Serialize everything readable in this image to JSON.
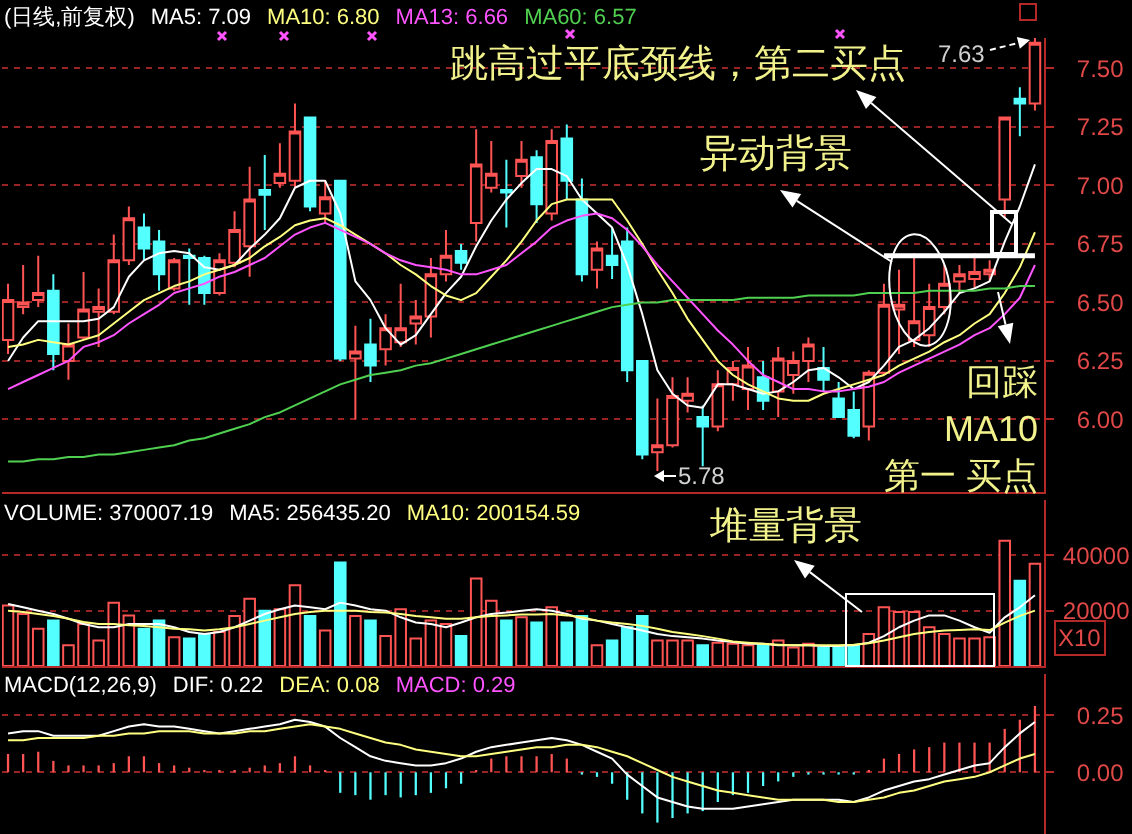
{
  "chart_data": [
    {
      "type": "candlestick",
      "title": "(日线,前复权)",
      "categories": [
        null,
        null,
        null,
        null,
        null,
        null,
        null,
        null,
        null,
        null,
        null,
        null,
        null,
        null,
        null,
        null,
        null,
        null,
        null,
        null,
        null,
        null,
        null,
        null,
        null,
        null,
        null,
        null,
        null,
        null,
        null,
        null,
        null,
        null,
        null,
        null,
        null,
        null,
        null,
        null,
        null,
        null,
        null,
        null,
        null,
        null,
        null,
        null,
        null,
        null,
        null,
        null,
        null,
        null,
        null,
        null,
        null,
        null,
        null,
        null,
        null,
        null,
        null,
        null,
        null,
        null,
        null,
        null,
        null
      ],
      "ohlc": [
        [
          6.34,
          6.58,
          6.28,
          6.51
        ],
        [
          6.48,
          6.66,
          6.45,
          6.5
        ],
        [
          6.51,
          6.7,
          6.48,
          6.54
        ],
        [
          6.55,
          6.62,
          6.21,
          6.28
        ],
        [
          6.25,
          6.41,
          6.17,
          6.32
        ],
        [
          6.35,
          6.63,
          6.34,
          6.47
        ],
        [
          6.46,
          6.56,
          6.31,
          6.48
        ],
        [
          6.46,
          6.79,
          6.45,
          6.68
        ],
        [
          6.68,
          6.91,
          6.66,
          6.86
        ],
        [
          6.82,
          6.88,
          6.68,
          6.73
        ],
        [
          6.76,
          6.81,
          6.55,
          6.62
        ],
        [
          6.56,
          6.69,
          6.55,
          6.68
        ],
        [
          6.7,
          6.73,
          6.49,
          6.69
        ],
        [
          6.69,
          6.7,
          6.49,
          6.54
        ],
        [
          6.54,
          6.71,
          6.53,
          6.68
        ],
        [
          6.67,
          6.89,
          6.65,
          6.81
        ],
        [
          6.74,
          7.08,
          6.61,
          6.94
        ],
        [
          6.98,
          7.13,
          6.81,
          6.96
        ],
        [
          7.01,
          7.18,
          6.99,
          7.05
        ],
        [
          7.02,
          7.35,
          6.99,
          7.23
        ],
        [
          7.29,
          7.29,
          6.89,
          6.91
        ],
        [
          6.88,
          7.02,
          6.84,
          6.95
        ],
        [
          7.02,
          7.02,
          6.25,
          6.26
        ],
        [
          6.26,
          6.4,
          6.0,
          6.29
        ],
        [
          6.32,
          6.43,
          6.16,
          6.23
        ],
        [
          6.3,
          6.45,
          6.23,
          6.39
        ],
        [
          6.33,
          6.58,
          6.31,
          6.39
        ],
        [
          6.41,
          6.51,
          6.32,
          6.44
        ],
        [
          6.44,
          6.69,
          6.35,
          6.62
        ],
        [
          6.62,
          6.81,
          6.59,
          6.7
        ],
        [
          6.72,
          6.75,
          6.64,
          6.67
        ],
        [
          6.84,
          7.24,
          6.76,
          7.09
        ],
        [
          6.99,
          7.19,
          6.97,
          7.05
        ],
        [
          6.98,
          7.11,
          6.82,
          6.97
        ],
        [
          7.04,
          7.19,
          6.99,
          7.11
        ],
        [
          7.12,
          7.15,
          6.84,
          6.92
        ],
        [
          6.88,
          7.24,
          6.85,
          7.19
        ],
        [
          7.2,
          7.26,
          6.94,
          7.02
        ],
        [
          6.94,
          7.03,
          6.59,
          6.62
        ],
        [
          6.64,
          6.76,
          6.56,
          6.73
        ],
        [
          6.7,
          6.82,
          6.6,
          6.66
        ],
        [
          6.76,
          6.82,
          6.16,
          6.21
        ],
        [
          6.25,
          6.25,
          5.83,
          5.85
        ],
        [
          5.86,
          6.09,
          5.78,
          5.89
        ],
        [
          5.89,
          6.18,
          5.88,
          6.1
        ],
        [
          6.08,
          6.18,
          6.03,
          6.11
        ],
        [
          6.01,
          6.06,
          5.8,
          5.97
        ],
        [
          5.97,
          6.21,
          5.95,
          6.15
        ],
        [
          6.15,
          6.25,
          6.08,
          6.22
        ],
        [
          6.13,
          6.31,
          6.04,
          6.23
        ],
        [
          6.18,
          6.25,
          6.04,
          6.08
        ],
        [
          6.12,
          6.31,
          6.01,
          6.26
        ],
        [
          6.19,
          6.29,
          6.11,
          6.25
        ],
        [
          6.25,
          6.35,
          6.16,
          6.32
        ],
        [
          6.22,
          6.31,
          6.12,
          6.17
        ],
        [
          6.09,
          6.16,
          6.01,
          6.01
        ],
        [
          6.04,
          6.12,
          5.92,
          5.93
        ],
        [
          5.97,
          6.21,
          5.91,
          6.2
        ],
        [
          6.2,
          6.58,
          6.19,
          6.49
        ],
        [
          6.47,
          6.64,
          6.28,
          6.49
        ],
        [
          6.34,
          6.71,
          6.31,
          6.42
        ],
        [
          6.36,
          6.58,
          6.31,
          6.48
        ],
        [
          6.48,
          6.66,
          6.45,
          6.58
        ],
        [
          6.59,
          6.66,
          6.54,
          6.62
        ],
        [
          6.6,
          6.71,
          6.56,
          6.63
        ],
        [
          6.62,
          6.68,
          6.59,
          6.64
        ],
        [
          6.94,
          7.29,
          6.86,
          7.29
        ],
        [
          7.37,
          7.42,
          7.21,
          7.35
        ],
        [
          7.35,
          7.63,
          7.32,
          7.61
        ]
      ],
      "colors": [
        "#ff5454",
        "#ff5454",
        "#ff5454",
        "#54ffff",
        "#ff5454",
        "#ff5454",
        "#ff5454",
        "#ff5454",
        "#ff5454",
        "#54ffff",
        "#54ffff",
        "#ff5454",
        "#54ffff",
        "#54ffff",
        "#ff5454",
        "#ff5454",
        "#ff5454",
        "#54ffff",
        "#ff5454",
        "#ff5454",
        "#54ffff",
        "#ff5454",
        "#54ffff",
        "#ff5454",
        "#54ffff",
        "#ff5454",
        "#ff5454",
        "#ff5454",
        "#ff5454",
        "#ff5454",
        "#54ffff",
        "#ff5454",
        "#ff5454",
        "#54ffff",
        "#ff5454",
        "#54ffff",
        "#ff5454",
        "#54ffff",
        "#54ffff",
        "#ff5454",
        "#54ffff",
        "#54ffff",
        "#54ffff",
        "#ff5454",
        "#ff5454",
        "#ff5454",
        "#54ffff",
        "#ff5454",
        "#ff5454",
        "#ff5454",
        "#54ffff",
        "#ff5454",
        "#ff5454",
        "#ff5454",
        "#54ffff",
        "#54ffff",
        "#54ffff",
        "#ff5454",
        "#ff5454",
        "#ff5454",
        "#ff5454",
        "#ff5454",
        "#ff5454",
        "#ff5454",
        "#ff5454",
        "#ff5454",
        "#ff5454",
        "#54ffff",
        "#ff5454"
      ],
      "series": [
        {
          "type": "line",
          "name": "MA5: 7.09",
          "color": "#ffffff",
          "values": [
            6.25,
            6.35,
            6.42,
            6.42,
            6.42,
            6.42,
            6.43,
            6.48,
            6.61,
            6.68,
            6.71,
            6.72,
            6.71,
            6.65,
            6.64,
            6.66,
            6.73,
            6.79,
            6.86,
            6.99,
            7.02,
            7.02,
            6.88,
            6.59,
            6.51,
            6.39,
            6.32,
            6.36,
            6.45,
            6.54,
            6.61,
            6.74,
            6.85,
            6.94,
            7.01,
            7.07,
            7.07,
            7.04,
            6.94,
            6.88,
            6.82,
            6.66,
            6.45,
            6.21,
            6.11,
            6.06,
            6.05,
            6.15,
            6.15,
            6.13,
            6.11,
            6.12,
            6.16,
            6.21,
            6.22,
            6.18,
            6.13,
            6.16,
            6.23,
            6.31,
            6.34,
            6.39,
            6.46,
            6.54,
            6.56,
            6.59,
            6.76,
            6.91,
            7.09
          ]
        },
        {
          "type": "line",
          "name": "MA10: 6.80",
          "color": "#ffff80",
          "values": [
            6.31,
            6.32,
            6.34,
            6.33,
            6.32,
            6.34,
            6.36,
            6.41,
            6.46,
            6.51,
            6.54,
            6.57,
            6.59,
            6.62,
            6.64,
            6.66,
            6.69,
            6.74,
            6.78,
            6.83,
            6.85,
            6.86,
            6.83,
            6.79,
            6.75,
            6.71,
            6.66,
            6.62,
            6.57,
            6.53,
            6.51,
            6.54,
            6.61,
            6.68,
            6.76,
            6.85,
            6.92,
            6.94,
            6.94,
            6.94,
            6.94,
            6.85,
            6.75,
            6.64,
            6.54,
            6.43,
            6.34,
            6.25,
            6.19,
            6.15,
            6.12,
            6.09,
            6.08,
            6.08,
            6.11,
            6.13,
            6.15,
            6.17,
            6.19,
            6.23,
            6.26,
            6.29,
            6.33,
            6.36,
            6.41,
            6.45,
            6.54,
            6.65,
            6.8
          ]
        },
        {
          "type": "line",
          "name": "MA13: 6.66",
          "color": "#ff54ff",
          "values": [
            6.13,
            6.16,
            6.19,
            6.22,
            6.25,
            6.31,
            6.33,
            6.36,
            6.41,
            6.45,
            6.49,
            6.54,
            6.56,
            6.58,
            6.61,
            6.63,
            6.66,
            6.69,
            6.74,
            6.79,
            6.82,
            6.84,
            6.81,
            6.78,
            6.75,
            6.71,
            6.68,
            6.66,
            6.65,
            6.64,
            6.62,
            6.62,
            6.64,
            6.66,
            6.71,
            6.76,
            6.82,
            6.85,
            6.87,
            6.88,
            6.86,
            6.81,
            6.74,
            6.66,
            6.59,
            6.52,
            6.45,
            6.38,
            6.32,
            6.25,
            6.19,
            6.16,
            6.13,
            6.13,
            6.12,
            6.12,
            6.13,
            6.14,
            6.16,
            6.2,
            6.23,
            6.26,
            6.29,
            6.32,
            6.36,
            6.39,
            6.45,
            6.52,
            6.66
          ]
        },
        {
          "type": "line",
          "name": "MA60: 6.57",
          "color": "#50d050",
          "values": [
            5.82,
            5.82,
            5.83,
            5.83,
            5.84,
            5.84,
            5.85,
            5.85,
            5.86,
            5.87,
            5.88,
            5.89,
            5.91,
            5.92,
            5.94,
            5.96,
            5.98,
            6.01,
            6.03,
            6.06,
            6.09,
            6.12,
            6.15,
            6.17,
            6.19,
            6.2,
            6.21,
            6.23,
            6.24,
            6.26,
            6.28,
            6.3,
            6.32,
            6.34,
            6.36,
            6.38,
            6.4,
            6.42,
            6.44,
            6.46,
            6.48,
            6.49,
            6.5,
            6.5,
            6.51,
            6.51,
            6.51,
            6.51,
            6.51,
            6.52,
            6.52,
            6.52,
            6.52,
            6.53,
            6.53,
            6.53,
            6.53,
            6.54,
            6.54,
            6.54,
            6.54,
            6.55,
            6.55,
            6.55,
            6.55,
            6.56,
            6.56,
            6.57,
            6.57
          ]
        },
        {
          "type": "line",
          "color": "#ffffff",
          "values": [
            null,
            null,
            null,
            null,
            null,
            null,
            null,
            null,
            null,
            null,
            null,
            null,
            null,
            null,
            null,
            null,
            null,
            null,
            null,
            null,
            null,
            null,
            null,
            null,
            null,
            null,
            null,
            null,
            null,
            null,
            null,
            null,
            null,
            null,
            null,
            null,
            null,
            null,
            null,
            null,
            null,
            null,
            null,
            null,
            null,
            null,
            null,
            null,
            null,
            null,
            null,
            null,
            null,
            null,
            null,
            null,
            null,
            null,
            6.7,
            6.7,
            6.7,
            6.7,
            6.7,
            6.7,
            6.7,
            6.7,
            6.7,
            6.7,
            6.7
          ]
        }
      ],
      "ylim": [
        5.69,
        7.63
      ],
      "yticks": [
        {
          "value": 6,
          "label": "6.00"
        },
        {
          "value": 6.25,
          "label": "6.25"
        },
        {
          "value": 6.5,
          "label": "6.50"
        },
        {
          "value": 6.75,
          "label": "6.75"
        },
        {
          "value": 7,
          "label": "7.00"
        },
        {
          "value": 7.25,
          "label": "7.25"
        },
        {
          "value": 7.5,
          "label": "7.50"
        }
      ],
      "grid": "y",
      "tick_labels": "y",
      "annotations": [
        "跳高过平底颈线，第二买点",
        "异动背景",
        "回踩\nMA10\n第一 买点",
        "7.63",
        "5.78"
      ]
    },
    {
      "type": "bar",
      "title": "VOLUME: 370007.19",
      "ylabel": "X10",
      "categories": [
        null,
        null,
        null,
        null,
        null,
        null,
        null,
        null,
        null,
        null,
        null,
        null,
        null,
        null,
        null,
        null,
        null,
        null,
        null,
        null,
        null,
        null,
        null,
        null,
        null,
        null,
        null,
        null,
        null,
        null,
        null,
        null,
        null,
        null,
        null,
        null,
        null,
        null,
        null,
        null,
        null,
        null,
        null,
        null,
        null,
        null,
        null,
        null,
        null,
        null,
        null,
        null,
        null,
        null,
        null,
        null,
        null,
        null,
        null,
        null,
        null,
        null,
        null,
        null,
        null,
        null,
        null,
        null,
        null
      ],
      "series": [
        {
          "colors": [
            "#ff5454",
            "#ff5454",
            "#ff5454",
            "#54ffff",
            "#ff5454",
            "#ff5454",
            "#ff5454",
            "#ff5454",
            "#ff5454",
            "#54ffff",
            "#54ffff",
            "#ff5454",
            "#54ffff",
            "#54ffff",
            "#ff5454",
            "#ff5454",
            "#ff5454",
            "#54ffff",
            "#ff5454",
            "#ff5454",
            "#54ffff",
            "#ff5454",
            "#54ffff",
            "#ff5454",
            "#54ffff",
            "#ff5454",
            "#ff5454",
            "#ff5454",
            "#ff5454",
            "#ff5454",
            "#54ffff",
            "#ff5454",
            "#ff5454",
            "#54ffff",
            "#ff5454",
            "#54ffff",
            "#ff5454",
            "#54ffff",
            "#54ffff",
            "#ff5454",
            "#54ffff",
            "#54ffff",
            "#54ffff",
            "#ff5454",
            "#ff5454",
            "#ff5454",
            "#54ffff",
            "#ff5454",
            "#ff5454",
            "#ff5454",
            "#54ffff",
            "#ff5454",
            "#ff5454",
            "#ff5454",
            "#54ffff",
            "#54ffff",
            "#54ffff",
            "#ff5454",
            "#ff5454",
            "#ff5454",
            "#ff5454",
            "#ff5454",
            "#ff5454",
            "#ff5454",
            "#ff5454",
            "#ff5454",
            "#ff5454",
            "#54ffff",
            "#ff5454"
          ],
          "values": [
            21900,
            18800,
            13500,
            16400,
            7500,
            15200,
            9200,
            22900,
            18300,
            13500,
            16400,
            10400,
            9900,
            11600,
            12300,
            18100,
            24300,
            20000,
            20500,
            29200,
            18100,
            12800,
            37400,
            18100,
            16400,
            10800,
            20500,
            9900,
            16400,
            15200,
            10800,
            31600,
            23600,
            16400,
            17600,
            15700,
            21200,
            15700,
            18100,
            7500,
            9200,
            14000,
            18100,
            9200,
            9200,
            9200,
            7500,
            8400,
            8000,
            7500,
            7500,
            9200,
            6700,
            8000,
            6700,
            6700,
            7500,
            11600,
            21200,
            19500,
            19500,
            14000,
            11600,
            9900,
            9900,
            10400,
            45300,
            30800,
            37000
          ]
        },
        {
          "type": "line",
          "name": "MA5: 256435.20",
          "color": "#ffffff",
          "values": [
            22400,
            21200,
            20000,
            18800,
            17100,
            15200,
            14000,
            14000,
            15200,
            15200,
            15200,
            14000,
            12300,
            11600,
            12300,
            14000,
            16400,
            18800,
            20500,
            21900,
            21200,
            20500,
            22900,
            21900,
            20500,
            20000,
            17600,
            15700,
            15200,
            14000,
            15700,
            17600,
            18800,
            19300,
            20000,
            20500,
            20000,
            18800,
            17100,
            16400,
            15200,
            14000,
            12800,
            11600,
            10800,
            10400,
            9900,
            9200,
            8700,
            8000,
            8000,
            7500,
            7500,
            7500,
            7200,
            7200,
            7500,
            8400,
            10800,
            14000,
            16400,
            18300,
            18300,
            16400,
            14000,
            12000,
            17600,
            21200,
            25600
          ]
        },
        {
          "type": "line",
          "name": "MA10: 200154.59",
          "color": "#ffff80",
          "values": [
            20000,
            19500,
            18800,
            18100,
            17100,
            15900,
            15200,
            15200,
            14700,
            14500,
            14000,
            13500,
            13300,
            12800,
            13300,
            14000,
            15200,
            16400,
            17600,
            18800,
            19500,
            20000,
            20000,
            20000,
            19500,
            19300,
            18800,
            18100,
            17600,
            17100,
            17100,
            17600,
            18100,
            18300,
            18600,
            18600,
            18800,
            18300,
            17600,
            16400,
            15700,
            15200,
            14500,
            13500,
            12300,
            11600,
            10800,
            9900,
            8900,
            8400,
            8000,
            7700,
            7500,
            7500,
            7500,
            7500,
            7700,
            8200,
            9200,
            10400,
            11600,
            12300,
            12800,
            13000,
            13300,
            13000,
            15700,
            18100,
            20000
          ]
        }
      ],
      "ylim": [
        0,
        60000
      ],
      "yticks": [
        20000,
        40000
      ],
      "grid": "y",
      "tick_labels": "y",
      "annotations": [
        "堆量背景"
      ]
    },
    {
      "type": "bar",
      "title": "MACD(12,26,9)",
      "categories": [
        null,
        null,
        null,
        null,
        null,
        null,
        null,
        null,
        null,
        null,
        null,
        null,
        null,
        null,
        null,
        null,
        null,
        null,
        null,
        null,
        null,
        null,
        null,
        null,
        null,
        null,
        null,
        null,
        null,
        null,
        null,
        null,
        null,
        null,
        null,
        null,
        null,
        null,
        null,
        null,
        null,
        null,
        null,
        null,
        null,
        null,
        null,
        null,
        null,
        null,
        null,
        null,
        null,
        null,
        null,
        null,
        null,
        null,
        null,
        null,
        null,
        null,
        null,
        null,
        null,
        null,
        null,
        null,
        null
      ],
      "series": [
        {
          "colors": [
            "#ff5454",
            "#ff5454",
            "#ff5454",
            "#ff5454",
            "#ff5454",
            "#ff5454",
            "#ff5454",
            "#ff5454",
            "#ff5454",
            "#ff5454",
            "#ff5454",
            "#ff5454",
            "#ff5454",
            "#ff5454",
            "#ff5454",
            "#ff5454",
            "#ff5454",
            "#ff5454",
            "#ff5454",
            "#ff5454",
            "#ff5454",
            "#ff5454",
            "#54ffff",
            "#54ffff",
            "#54ffff",
            "#54ffff",
            "#54ffff",
            "#54ffff",
            "#54ffff",
            "#54ffff",
            "#54ffff",
            "#ff5454",
            "#ff5454",
            "#ff5454",
            "#ff5454",
            "#ff5454",
            "#ff5454",
            "#ff5454",
            "#54ffff",
            "#54ffff",
            "#54ffff",
            "#54ffff",
            "#54ffff",
            "#54ffff",
            "#54ffff",
            "#54ffff",
            "#54ffff",
            "#54ffff",
            "#54ffff",
            "#54ffff",
            "#54ffff",
            "#54ffff",
            "#54ffff",
            "#54ffff",
            "#54ffff",
            "#54ffff",
            "#54ffff",
            "#ff5454",
            "#ff5454",
            "#ff5454",
            "#ff5454",
            "#ff5454",
            "#ff5454",
            "#ff5454",
            "#ff5454",
            "#ff5454",
            "#ff5454",
            "#ff5454",
            "#ff5454"
          ],
          "values": [
            0.08,
            0.08,
            0.09,
            0.05,
            0.03,
            0.03,
            0.03,
            0.04,
            0.07,
            0.07,
            0.04,
            0.03,
            0.02,
            0.01,
            0.01,
            0.01,
            0.02,
            0.03,
            0.04,
            0.07,
            0.03,
            0.01,
            -0.09,
            -0.1,
            -0.12,
            -0.1,
            -0.11,
            -0.1,
            -0.09,
            -0.07,
            -0.05,
            0.01,
            0.06,
            0.07,
            0.07,
            0.07,
            0.08,
            0.06,
            -0.01,
            -0.02,
            -0.05,
            -0.12,
            -0.18,
            -0.22,
            -0.2,
            -0.18,
            -0.17,
            -0.13,
            -0.1,
            -0.09,
            -0.06,
            -0.04,
            -0.02,
            -0.01,
            -0.01,
            -0.01,
            -0.01,
            0.01,
            0.06,
            0.08,
            0.1,
            0.11,
            0.13,
            0.13,
            0.13,
            0.13,
            0.19,
            0.23,
            0.29
          ]
        },
        {
          "type": "line",
          "name": "DIF: 0.22",
          "color": "#ffffff",
          "values": [
            0.17,
            0.18,
            0.18,
            0.16,
            0.16,
            0.16,
            0.16,
            0.18,
            0.2,
            0.21,
            0.2,
            0.2,
            0.19,
            0.18,
            0.17,
            0.18,
            0.19,
            0.2,
            0.21,
            0.23,
            0.22,
            0.2,
            0.15,
            0.11,
            0.07,
            0.05,
            0.04,
            0.03,
            0.03,
            0.04,
            0.06,
            0.09,
            0.11,
            0.12,
            0.13,
            0.14,
            0.15,
            0.14,
            0.12,
            0.09,
            0.06,
            -0.01,
            -0.06,
            -0.11,
            -0.13,
            -0.15,
            -0.16,
            -0.16,
            -0.16,
            -0.15,
            -0.14,
            -0.13,
            -0.12,
            -0.12,
            -0.12,
            -0.12,
            -0.13,
            -0.11,
            -0.08,
            -0.06,
            -0.04,
            -0.03,
            -0.01,
            0.01,
            0.03,
            0.04,
            0.11,
            0.17,
            0.22
          ]
        },
        {
          "type": "line",
          "name": "DEA: 0.08",
          "color": "#ffff80",
          "values": [
            0.14,
            0.14,
            0.15,
            0.15,
            0.15,
            0.15,
            0.16,
            0.16,
            0.17,
            0.17,
            0.18,
            0.18,
            0.18,
            0.17,
            0.17,
            0.17,
            0.18,
            0.18,
            0.19,
            0.2,
            0.21,
            0.2,
            0.19,
            0.17,
            0.15,
            0.13,
            0.12,
            0.1,
            0.09,
            0.08,
            0.07,
            0.07,
            0.08,
            0.09,
            0.1,
            0.11,
            0.11,
            0.12,
            0.12,
            0.11,
            0.09,
            0.07,
            0.04,
            0.01,
            -0.02,
            -0.04,
            -0.06,
            -0.08,
            -0.09,
            -0.1,
            -0.11,
            -0.12,
            -0.12,
            -0.12,
            -0.12,
            -0.13,
            -0.13,
            -0.12,
            -0.11,
            -0.09,
            -0.08,
            -0.06,
            -0.04,
            -0.03,
            -0.02,
            0.0,
            0.03,
            0.06,
            0.08
          ]
        }
      ],
      "ylim": [
        -0.27,
        0.43
      ],
      "yticks": [
        {
          "value": 0,
          "label": "0.00"
        },
        {
          "value": 0.25,
          "label": "0.25"
        }
      ],
      "grid": "y",
      "tick_labels": "y",
      "annotations": [
        "MACD: 0.29"
      ]
    }
  ]
}
